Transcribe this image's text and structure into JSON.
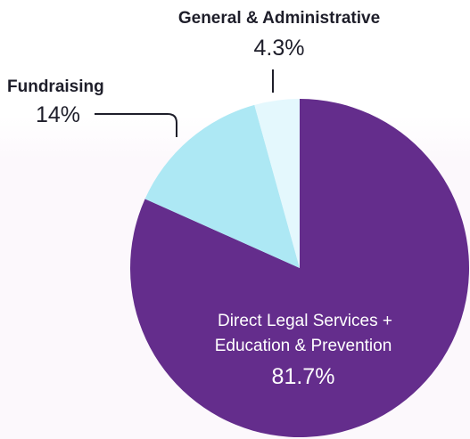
{
  "chart_data": {
    "type": "pie",
    "title": "",
    "start_angle_deg": 0,
    "direction": "clockwise",
    "slices": [
      {
        "label_lines": [
          "Direct Legal Services +",
          "Education & Prevention"
        ],
        "value": 81.7,
        "value_label": "81.7%",
        "color": "#642d8c",
        "label_position": "inside"
      },
      {
        "label_lines": [
          "Fundraising"
        ],
        "value": 14,
        "value_label": "14%",
        "color": "#ade8f4",
        "label_position": "outside-left"
      },
      {
        "label_lines": [
          "General & Administrative"
        ],
        "value": 4.3,
        "value_label": "4.3%",
        "color": "#e4f8fd",
        "label_position": "outside-top"
      }
    ]
  }
}
